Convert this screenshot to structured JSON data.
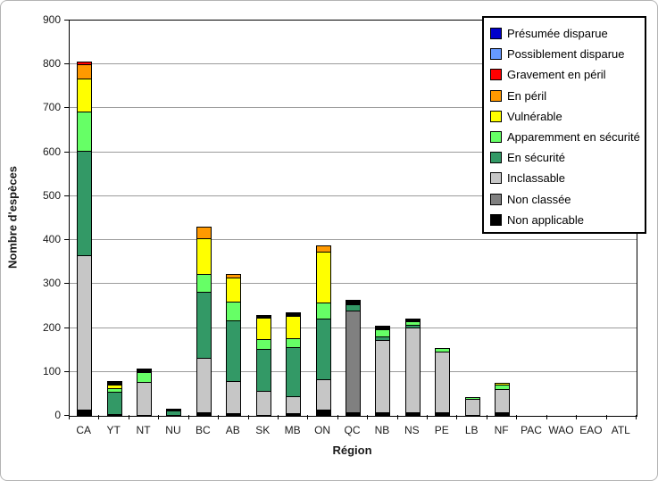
{
  "figure": {
    "background": "#FFFFFF",
    "outer_border_color": "#B3B3B3"
  },
  "chart_data": {
    "type": "bar",
    "stacked": true,
    "title": "",
    "xlabel": "Région",
    "ylabel": "Nombre d'espèces",
    "ylim": [
      0,
      900
    ],
    "ytick_interval": 100,
    "yticks": [
      0,
      100,
      200,
      300,
      400,
      500,
      600,
      700,
      800,
      900
    ],
    "grid": "horizontal",
    "gridline_color": "#9B9B9B",
    "legend_position": "top-right",
    "legend": [
      {
        "label": "Présumée disparue",
        "color": "#0000CC"
      },
      {
        "label": "Possiblement disparue",
        "color": "#6699FF"
      },
      {
        "label": "Gravement en péril",
        "color": "#FF0000"
      },
      {
        "label": "En péril",
        "color": "#FF9900"
      },
      {
        "label": "Vulnérable",
        "color": "#FFFF00"
      },
      {
        "label": "Apparemment en sécurité",
        "color": "#66FF66"
      },
      {
        "label": "En sécurité",
        "color": "#339966"
      },
      {
        "label": "Inclassable",
        "color": "#C6C6C6"
      },
      {
        "label": "Non classée",
        "color": "#808080"
      },
      {
        "label": "Non applicable",
        "color": "#000000"
      }
    ],
    "categories": [
      "CA",
      "YT",
      "NT",
      "NU",
      "BC",
      "AB",
      "SK",
      "MB",
      "ON",
      "QC",
      "NB",
      "NS",
      "PE",
      "LB",
      "NF",
      "PAC",
      "WAO",
      "EAO",
      "ATL"
    ],
    "bars_note": "segments listed bottom-to-top as rendered; values estimated from gridlines",
    "bars": {
      "CA": [
        {
          "status": "Non applicable",
          "value": 15
        },
        {
          "status": "Inclassable",
          "value": 350
        },
        {
          "status": "En sécurité",
          "value": 239
        },
        {
          "status": "Apparemment en sécurité",
          "value": 88
        },
        {
          "status": "Vulnérable",
          "value": 75
        },
        {
          "status": "En péril",
          "value": 33
        },
        {
          "status": "Gravement en péril",
          "value": 6
        }
      ],
      "YT": [
        {
          "status": "Inclassable",
          "value": 5
        },
        {
          "status": "En sécurité",
          "value": 49
        },
        {
          "status": "Apparemment en sécurité",
          "value": 8
        },
        {
          "status": "Vulnérable",
          "value": 10
        },
        {
          "status": "Non applicable",
          "value": 7
        }
      ],
      "NT": [
        {
          "status": "Inclassable",
          "value": 78
        },
        {
          "status": "Apparemment en sécurité",
          "value": 22
        },
        {
          "status": "Non applicable",
          "value": 8
        }
      ],
      "NU": [
        {
          "status": "En sécurité",
          "value": 13
        },
        {
          "status": "Non applicable",
          "value": 2
        }
      ],
      "BC": [
        {
          "status": "Non applicable",
          "value": 8
        },
        {
          "status": "Inclassable",
          "value": 124
        },
        {
          "status": "En sécurité",
          "value": 150
        },
        {
          "status": "Apparemment en sécurité",
          "value": 42
        },
        {
          "status": "Vulnérable",
          "value": 80
        },
        {
          "status": "En péril",
          "value": 26
        }
      ],
      "AB": [
        {
          "status": "Non applicable",
          "value": 6
        },
        {
          "status": "Inclassable",
          "value": 73
        },
        {
          "status": "En sécurité",
          "value": 138
        },
        {
          "status": "Apparemment en sécurité",
          "value": 44
        },
        {
          "status": "Vulnérable",
          "value": 54
        },
        {
          "status": "En péril",
          "value": 8
        }
      ],
      "SK": [
        {
          "status": "Non applicable",
          "value": 3
        },
        {
          "status": "Inclassable",
          "value": 54
        },
        {
          "status": "En sécurité",
          "value": 95
        },
        {
          "status": "Apparemment en sécurité",
          "value": 22
        },
        {
          "status": "Vulnérable",
          "value": 49
        },
        {
          "status": "Non applicable",
          "value": 7
        }
      ],
      "MB": [
        {
          "status": "Non applicable",
          "value": 6
        },
        {
          "status": "Inclassable",
          "value": 39
        },
        {
          "status": "En sécurité",
          "value": 112
        },
        {
          "status": "Apparemment en sécurité",
          "value": 20
        },
        {
          "status": "Vulnérable",
          "value": 51
        },
        {
          "status": "Non applicable",
          "value": 8
        }
      ],
      "ON": [
        {
          "status": "Non applicable",
          "value": 14
        },
        {
          "status": "Inclassable",
          "value": 69
        },
        {
          "status": "En sécurité",
          "value": 139
        },
        {
          "status": "Apparemment en sécurité",
          "value": 37
        },
        {
          "status": "Vulnérable",
          "value": 115
        },
        {
          "status": "En péril",
          "value": 14
        }
      ],
      "QC": [
        {
          "status": "Non applicable",
          "value": 9
        },
        {
          "status": "Non classée",
          "value": 231
        },
        {
          "status": "En sécurité",
          "value": 13
        },
        {
          "status": "Non applicable",
          "value": 12
        }
      ],
      "NB": [
        {
          "status": "Non applicable",
          "value": 8
        },
        {
          "status": "Inclassable",
          "value": 165
        },
        {
          "status": "En sécurité",
          "value": 8
        },
        {
          "status": "Apparemment en sécurité",
          "value": 17
        },
        {
          "status": "Non applicable",
          "value": 7
        }
      ],
      "NS": [
        {
          "status": "Non applicable",
          "value": 8
        },
        {
          "status": "Inclassable",
          "value": 193
        },
        {
          "status": "En sécurité",
          "value": 6
        },
        {
          "status": "Apparemment en sécurité",
          "value": 8
        },
        {
          "status": "Non applicable",
          "value": 7
        }
      ],
      "PE": [
        {
          "status": "Non applicable",
          "value": 8
        },
        {
          "status": "Inclassable",
          "value": 139
        },
        {
          "status": "Apparemment en sécurité",
          "value": 7
        }
      ],
      "LB": [
        {
          "status": "Inclassable",
          "value": 38
        },
        {
          "status": "Apparemment en sécurité",
          "value": 4
        }
      ],
      "NF": [
        {
          "status": "Non applicable",
          "value": 8
        },
        {
          "status": "Inclassable",
          "value": 53
        },
        {
          "status": "Apparemment en sécurité",
          "value": 10
        },
        {
          "status": "Vulnérable",
          "value": 5
        }
      ],
      "PAC": [],
      "WAO": [],
      "EAO": [],
      "ATL": []
    }
  }
}
